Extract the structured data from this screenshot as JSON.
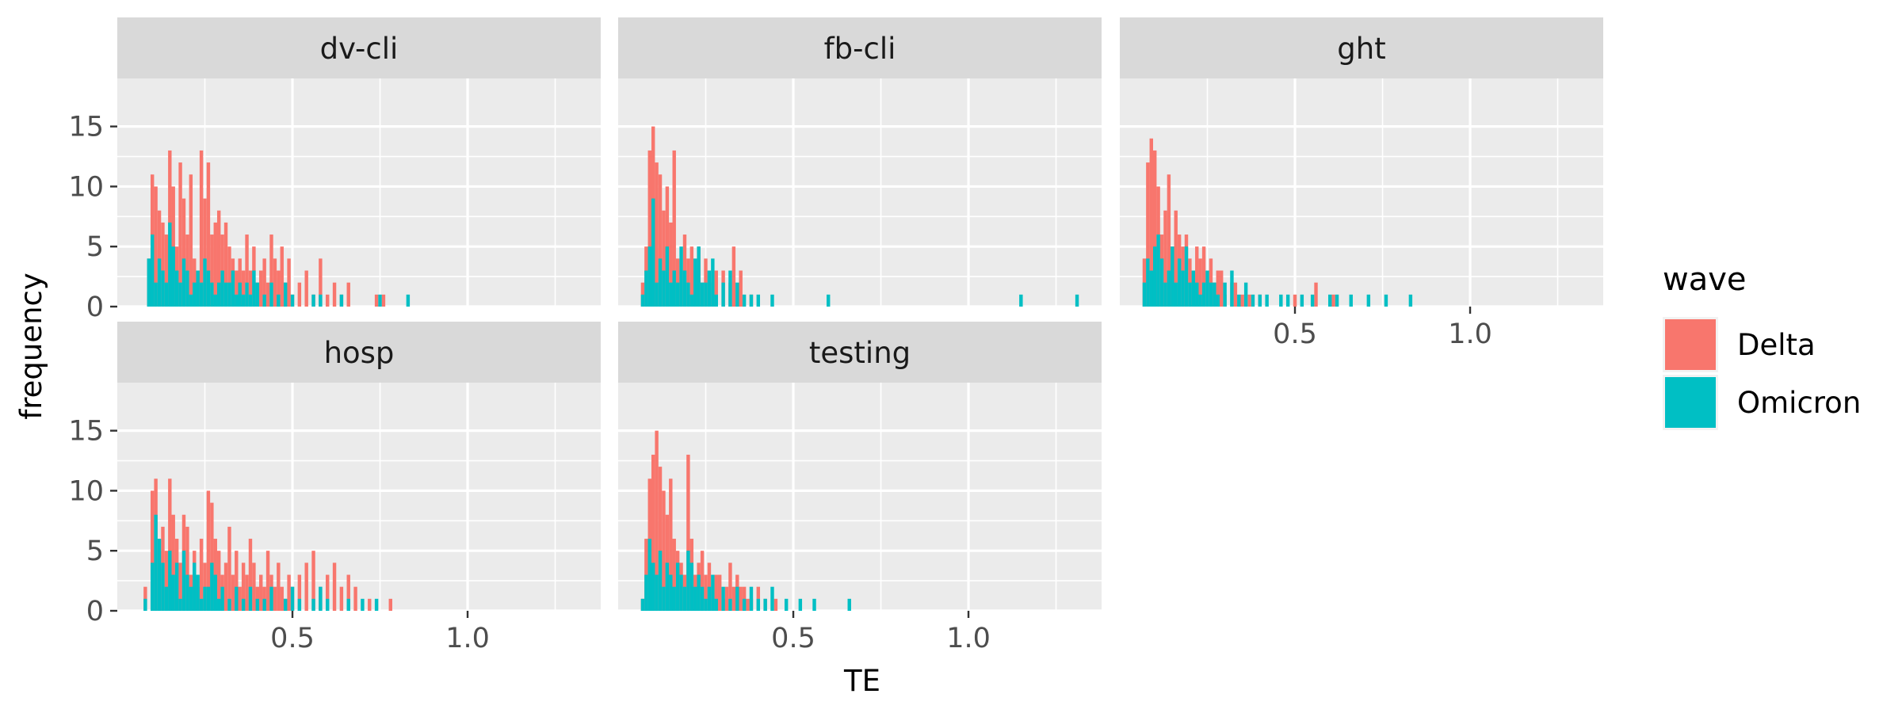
{
  "chart_data": {
    "type": "histogram",
    "facet_layout": "wrap 3 columns",
    "fill_variable": "wave",
    "xlabel": "TE",
    "ylabel": "frequency",
    "xlim": [
      0,
      1.38
    ],
    "ylim": [
      0,
      19
    ],
    "x_ticks": [
      0.5,
      1.0
    ],
    "x_tick_labels": [
      "0.5",
      "1.0"
    ],
    "y_ticks": [
      0,
      5,
      10,
      15
    ],
    "y_tick_labels": [
      "0",
      "5",
      "10",
      "15"
    ],
    "bin_width": 0.01,
    "grid": true,
    "legend": {
      "title": "wave",
      "position": "right",
      "entries": [
        {
          "label": "Delta",
          "color": "#F8766D"
        },
        {
          "label": "Omicron",
          "color": "#00BFC4"
        }
      ]
    },
    "panels": [
      {
        "label": "dv-cli",
        "series": [
          {
            "name": "Delta",
            "x": [
              0.09,
              0.1,
              0.11,
              0.12,
              0.13,
              0.14,
              0.15,
              0.16,
              0.17,
              0.18,
              0.19,
              0.2,
              0.21,
              0.22,
              0.23,
              0.24,
              0.25,
              0.26,
              0.27,
              0.28,
              0.29,
              0.3,
              0.31,
              0.32,
              0.33,
              0.34,
              0.35,
              0.36,
              0.37,
              0.38,
              0.39,
              0.4,
              0.41,
              0.42,
              0.43,
              0.44,
              0.45,
              0.46,
              0.47,
              0.48,
              0.49,
              0.5,
              0.52,
              0.54,
              0.56,
              0.58,
              0.6,
              0.62,
              0.64,
              0.66,
              0.74,
              0.76
            ],
            "y": [
              4,
              11,
              10,
              8,
              7,
              6,
              13,
              10,
              5,
              12,
              9,
              6,
              11,
              4,
              3,
              13,
              9,
              12,
              6,
              7,
              8,
              6,
              7,
              5,
              4,
              3,
              4,
              3,
              6,
              3,
              5,
              2,
              3,
              4,
              2,
              6,
              4,
              3,
              5,
              2,
              4,
              1,
              2,
              3,
              1,
              4,
              1,
              2,
              1,
              2,
              1,
              1
            ]
          },
          {
            "name": "Omicron",
            "x": [
              0.09,
              0.1,
              0.11,
              0.12,
              0.13,
              0.14,
              0.15,
              0.16,
              0.17,
              0.18,
              0.19,
              0.2,
              0.21,
              0.22,
              0.23,
              0.24,
              0.25,
              0.26,
              0.27,
              0.28,
              0.29,
              0.3,
              0.31,
              0.32,
              0.33,
              0.34,
              0.35,
              0.36,
              0.37,
              0.38,
              0.39,
              0.4,
              0.42,
              0.44,
              0.46,
              0.48,
              0.5,
              0.56,
              0.58,
              0.64,
              0.75,
              0.83
            ],
            "y": [
              4,
              6,
              2,
              4,
              3,
              2,
              7,
              5,
              3,
              2,
              4,
              3,
              1,
              2,
              3,
              2,
              4,
              3,
              2,
              1,
              2,
              3,
              2,
              2,
              3,
              1,
              2,
              1,
              2,
              1,
              3,
              2,
              1,
              2,
              1,
              2,
              1,
              1,
              1,
              1,
              1,
              1
            ]
          }
        ]
      },
      {
        "label": "fb-cli",
        "series": [
          {
            "name": "Delta",
            "x": [
              0.07,
              0.08,
              0.09,
              0.1,
              0.11,
              0.12,
              0.13,
              0.14,
              0.15,
              0.16,
              0.17,
              0.18,
              0.19,
              0.2,
              0.21,
              0.22,
              0.23,
              0.24,
              0.25,
              0.26,
              0.27,
              0.28,
              0.3,
              0.32,
              0.33,
              0.35,
              0.38
            ],
            "y": [
              2,
              5,
              13,
              15,
              12,
              11,
              8,
              10,
              7,
              13,
              4,
              3,
              6,
              4,
              5,
              3,
              5,
              2,
              4,
              3,
              2,
              3,
              3,
              2,
              5,
              3,
              1
            ]
          },
          {
            "name": "Omicron",
            "x": [
              0.07,
              0.08,
              0.09,
              0.1,
              0.11,
              0.12,
              0.13,
              0.14,
              0.15,
              0.16,
              0.17,
              0.18,
              0.19,
              0.2,
              0.21,
              0.22,
              0.23,
              0.24,
              0.25,
              0.26,
              0.27,
              0.28,
              0.3,
              0.32,
              0.34,
              0.36,
              0.38,
              0.4,
              0.44,
              0.6,
              1.15,
              1.31
            ],
            "y": [
              1,
              3,
              5,
              9,
              2,
              4,
              3,
              5,
              2,
              3,
              2,
              5,
              3,
              2,
              1,
              4,
              5,
              2,
              2,
              3,
              4,
              1,
              2,
              3,
              2,
              1,
              1,
              1,
              1,
              1,
              1,
              1
            ]
          }
        ]
      },
      {
        "label": "ght",
        "series": [
          {
            "name": "Delta",
            "x": [
              0.07,
              0.08,
              0.09,
              0.1,
              0.11,
              0.12,
              0.13,
              0.14,
              0.15,
              0.16,
              0.17,
              0.18,
              0.19,
              0.2,
              0.21,
              0.22,
              0.23,
              0.24,
              0.25,
              0.26,
              0.27,
              0.28,
              0.29,
              0.3,
              0.32,
              0.33,
              0.35,
              0.37,
              0.4,
              0.5,
              0.56,
              0.61
            ],
            "y": [
              4,
              12,
              14,
              13,
              10,
              6,
              8,
              11,
              5,
              8,
              6,
              5,
              6,
              4,
              3,
              5,
              4,
              5,
              3,
              4,
              2,
              3,
              3,
              1,
              2,
              2,
              1,
              1,
              1,
              1,
              2,
              1
            ]
          },
          {
            "name": "Omicron",
            "x": [
              0.07,
              0.08,
              0.09,
              0.1,
              0.11,
              0.12,
              0.13,
              0.14,
              0.15,
              0.16,
              0.17,
              0.18,
              0.19,
              0.2,
              0.21,
              0.22,
              0.23,
              0.24,
              0.25,
              0.26,
              0.27,
              0.28,
              0.3,
              0.32,
              0.34,
              0.36,
              0.38,
              0.4,
              0.42,
              0.46,
              0.48,
              0.52,
              0.55,
              0.6,
              0.62,
              0.66,
              0.71,
              0.76,
              0.83
            ],
            "y": [
              2,
              4,
              3,
              5,
              6,
              4,
              2,
              3,
              5,
              2,
              4,
              3,
              5,
              2,
              3,
              2,
              1,
              2,
              3,
              2,
              2,
              1,
              2,
              3,
              1,
              2,
              1,
              1,
              1,
              1,
              1,
              1,
              1,
              1,
              1,
              1,
              1,
              1,
              1
            ]
          }
        ]
      },
      {
        "label": "hosp",
        "series": [
          {
            "name": "Delta",
            "x": [
              0.08,
              0.1,
              0.11,
              0.12,
              0.13,
              0.14,
              0.15,
              0.16,
              0.17,
              0.18,
              0.19,
              0.2,
              0.21,
              0.22,
              0.23,
              0.24,
              0.25,
              0.26,
              0.27,
              0.28,
              0.29,
              0.3,
              0.31,
              0.32,
              0.33,
              0.34,
              0.35,
              0.36,
              0.37,
              0.38,
              0.39,
              0.4,
              0.41,
              0.42,
              0.43,
              0.44,
              0.45,
              0.46,
              0.47,
              0.48,
              0.49,
              0.5,
              0.52,
              0.54,
              0.56,
              0.58,
              0.6,
              0.62,
              0.64,
              0.66,
              0.68,
              0.72,
              0.78
            ],
            "y": [
              2,
              10,
              11,
              5,
              7,
              5,
              11,
              8,
              6,
              4,
              8,
              7,
              3,
              5,
              2,
              6,
              4,
              10,
              9,
              6,
              5,
              3,
              4,
              7,
              3,
              5,
              2,
              4,
              3,
              6,
              4,
              2,
              3,
              2,
              5,
              3,
              2,
              4,
              2,
              1,
              3,
              2,
              3,
              4,
              5,
              2,
              3,
              4,
              2,
              3,
              2,
              1,
              1
            ]
          },
          {
            "name": "Omicron",
            "x": [
              0.08,
              0.1,
              0.11,
              0.12,
              0.13,
              0.14,
              0.15,
              0.16,
              0.17,
              0.18,
              0.19,
              0.2,
              0.21,
              0.22,
              0.23,
              0.24,
              0.25,
              0.26,
              0.27,
              0.28,
              0.29,
              0.3,
              0.32,
              0.34,
              0.36,
              0.38,
              0.4,
              0.42,
              0.44,
              0.48,
              0.5,
              0.52,
              0.56,
              0.58,
              0.6,
              0.66,
              0.7,
              0.74
            ],
            "y": [
              1,
              4,
              8,
              6,
              4,
              2,
              5,
              3,
              4,
              1,
              5,
              3,
              2,
              4,
              3,
              1,
              2,
              2,
              4,
              3,
              1,
              2,
              1,
              2,
              1,
              2,
              1,
              1,
              2,
              1,
              2,
              1,
              1,
              2,
              1,
              1,
              1,
              1
            ]
          }
        ]
      },
      {
        "label": "testing",
        "series": [
          {
            "name": "Delta",
            "x": [
              0.07,
              0.08,
              0.09,
              0.1,
              0.11,
              0.12,
              0.13,
              0.14,
              0.15,
              0.16,
              0.17,
              0.18,
              0.19,
              0.2,
              0.21,
              0.22,
              0.23,
              0.24,
              0.25,
              0.26,
              0.27,
              0.28,
              0.29,
              0.3,
              0.31,
              0.32,
              0.33,
              0.34,
              0.35,
              0.36,
              0.37,
              0.38,
              0.4,
              0.42,
              0.45
            ],
            "y": [
              1,
              6,
              11,
              13,
              15,
              12,
              10,
              8,
              11,
              6,
              5,
              4,
              3,
              13,
              6,
              3,
              4,
              5,
              3,
              4,
              2,
              3,
              3,
              1,
              2,
              4,
              2,
              3,
              2,
              2,
              1,
              1,
              2,
              1,
              1
            ]
          },
          {
            "name": "Omicron",
            "x": [
              0.07,
              0.08,
              0.09,
              0.1,
              0.11,
              0.12,
              0.13,
              0.14,
              0.15,
              0.16,
              0.17,
              0.18,
              0.19,
              0.2,
              0.21,
              0.22,
              0.23,
              0.24,
              0.25,
              0.26,
              0.27,
              0.28,
              0.3,
              0.32,
              0.34,
              0.36,
              0.38,
              0.4,
              0.42,
              0.44,
              0.48,
              0.52,
              0.56,
              0.66
            ],
            "y": [
              1,
              3,
              6,
              4,
              3,
              5,
              2,
              4,
              3,
              2,
              4,
              3,
              2,
              5,
              4,
              2,
              3,
              2,
              1,
              2,
              3,
              1,
              2,
              1,
              2,
              1,
              2,
              1,
              1,
              2,
              1,
              1,
              1,
              1
            ]
          }
        ]
      }
    ]
  }
}
